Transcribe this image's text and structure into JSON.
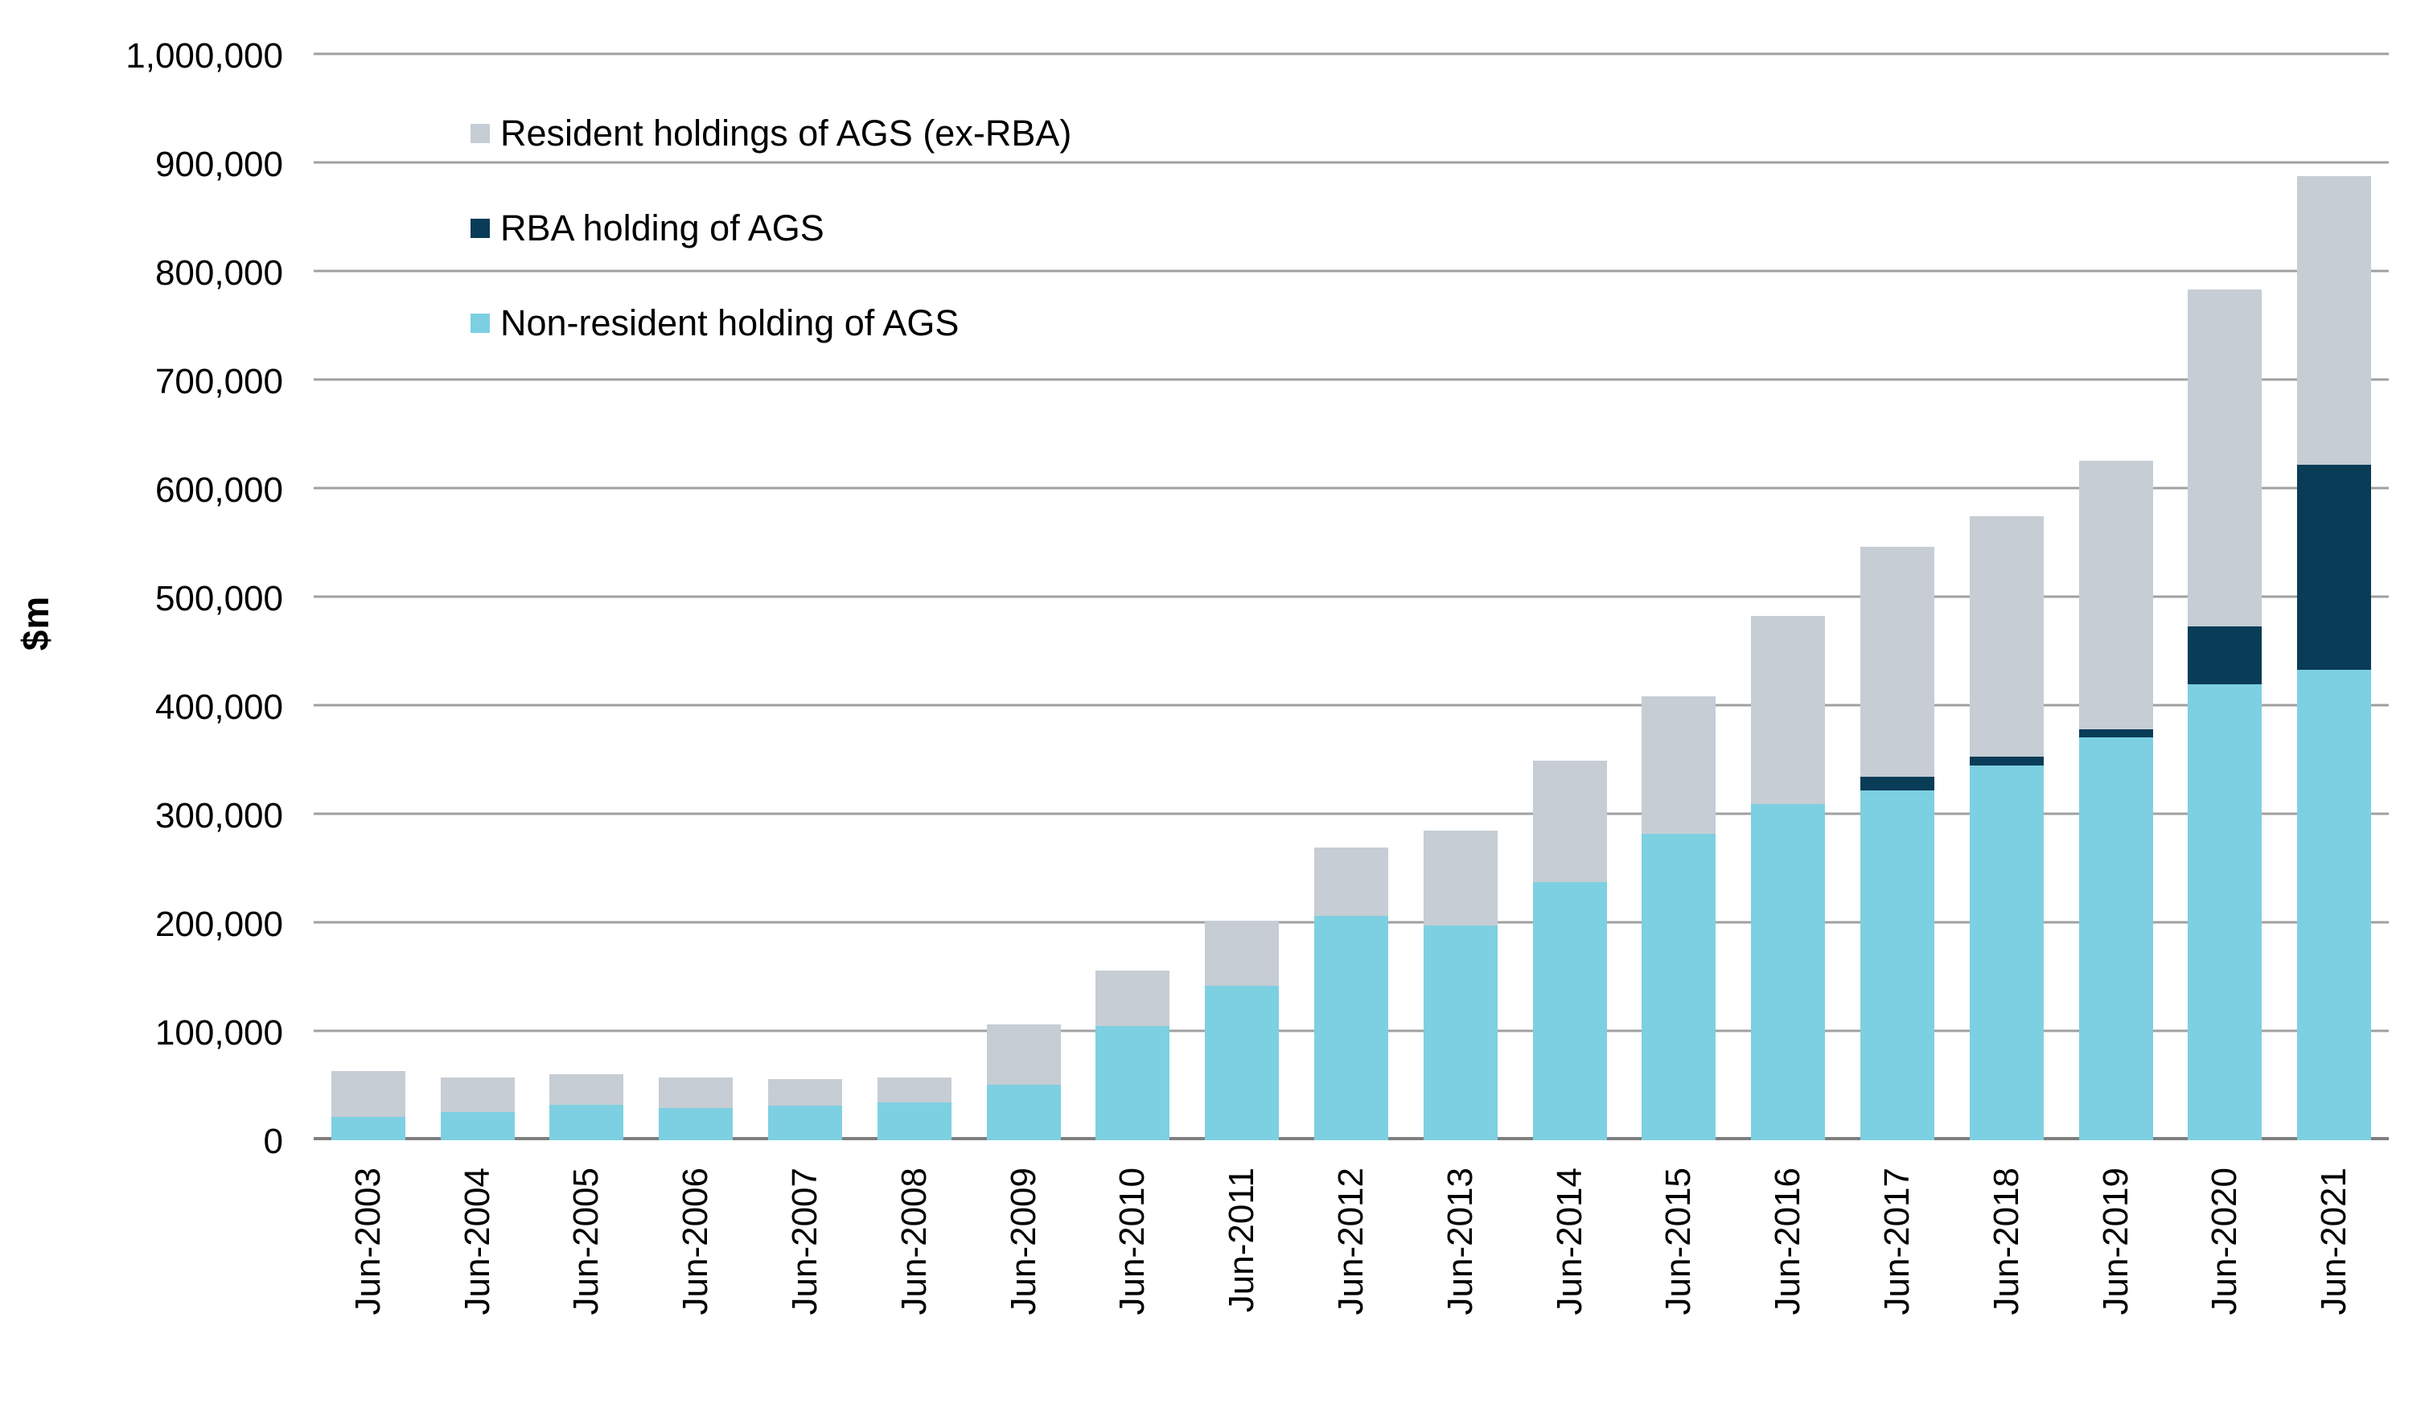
{
  "chart_data": {
    "type": "bar",
    "stacked": true,
    "title": "",
    "ylabel": "$m",
    "xlabel": "",
    "ylim": [
      0,
      1000000
    ],
    "ytick_interval": 100000,
    "grid": "horizontal",
    "legend_position": "top-left-inside",
    "categories": [
      "Jun-2003",
      "Jun-2004",
      "Jun-2005",
      "Jun-2006",
      "Jun-2007",
      "Jun-2008",
      "Jun-2009",
      "Jun-2010",
      "Jun-2011",
      "Jun-2012",
      "Jun-2013",
      "Jun-2014",
      "Jun-2015",
      "Jun-2016",
      "Jun-2017",
      "Jun-2018",
      "Jun-2019",
      "Jun-2020",
      "Jun-2021"
    ],
    "series": [
      {
        "name": "Resident holdings of AGS (ex-RBA)",
        "color": "#c6cdd4",
        "stack_order": 3,
        "values": [
          42000,
          32000,
          28000,
          27500,
          24500,
          22500,
          55500,
          51000,
          60000,
          63000,
          88000,
          112000,
          126500,
          173000,
          212000,
          222000,
          247500,
          311000,
          266000
        ]
      },
      {
        "name": "RBA holding of AGS",
        "color": "#083c57",
        "stack_order": 2,
        "values": [
          0,
          0,
          0,
          0,
          0,
          0,
          0,
          0,
          0,
          0,
          0,
          0,
          0,
          0,
          13000,
          8000,
          7500,
          53000,
          189000
        ]
      },
      {
        "name": "Non-resident holding of AGS",
        "color": "#7dd0e1",
        "stack_order": 1,
        "values": [
          21500,
          26000,
          32500,
          30000,
          31500,
          35000,
          51000,
          105000,
          142000,
          207000,
          197500,
          238000,
          282500,
          310000,
          322000,
          345000,
          371000,
          420000,
          433000
        ]
      }
    ],
    "totals": [
      63500,
      58000,
      60500,
      57500,
      56000,
      57500,
      106500,
      156000,
      202000,
      270000,
      285500,
      350000,
      409000,
      483000,
      547000,
      575000,
      626000,
      784000,
      888000
    ],
    "colors": {
      "gridline": "#a0a0a0",
      "zero_line": "#7f7f7f",
      "background": "#ffffff",
      "text": "#000000"
    }
  }
}
